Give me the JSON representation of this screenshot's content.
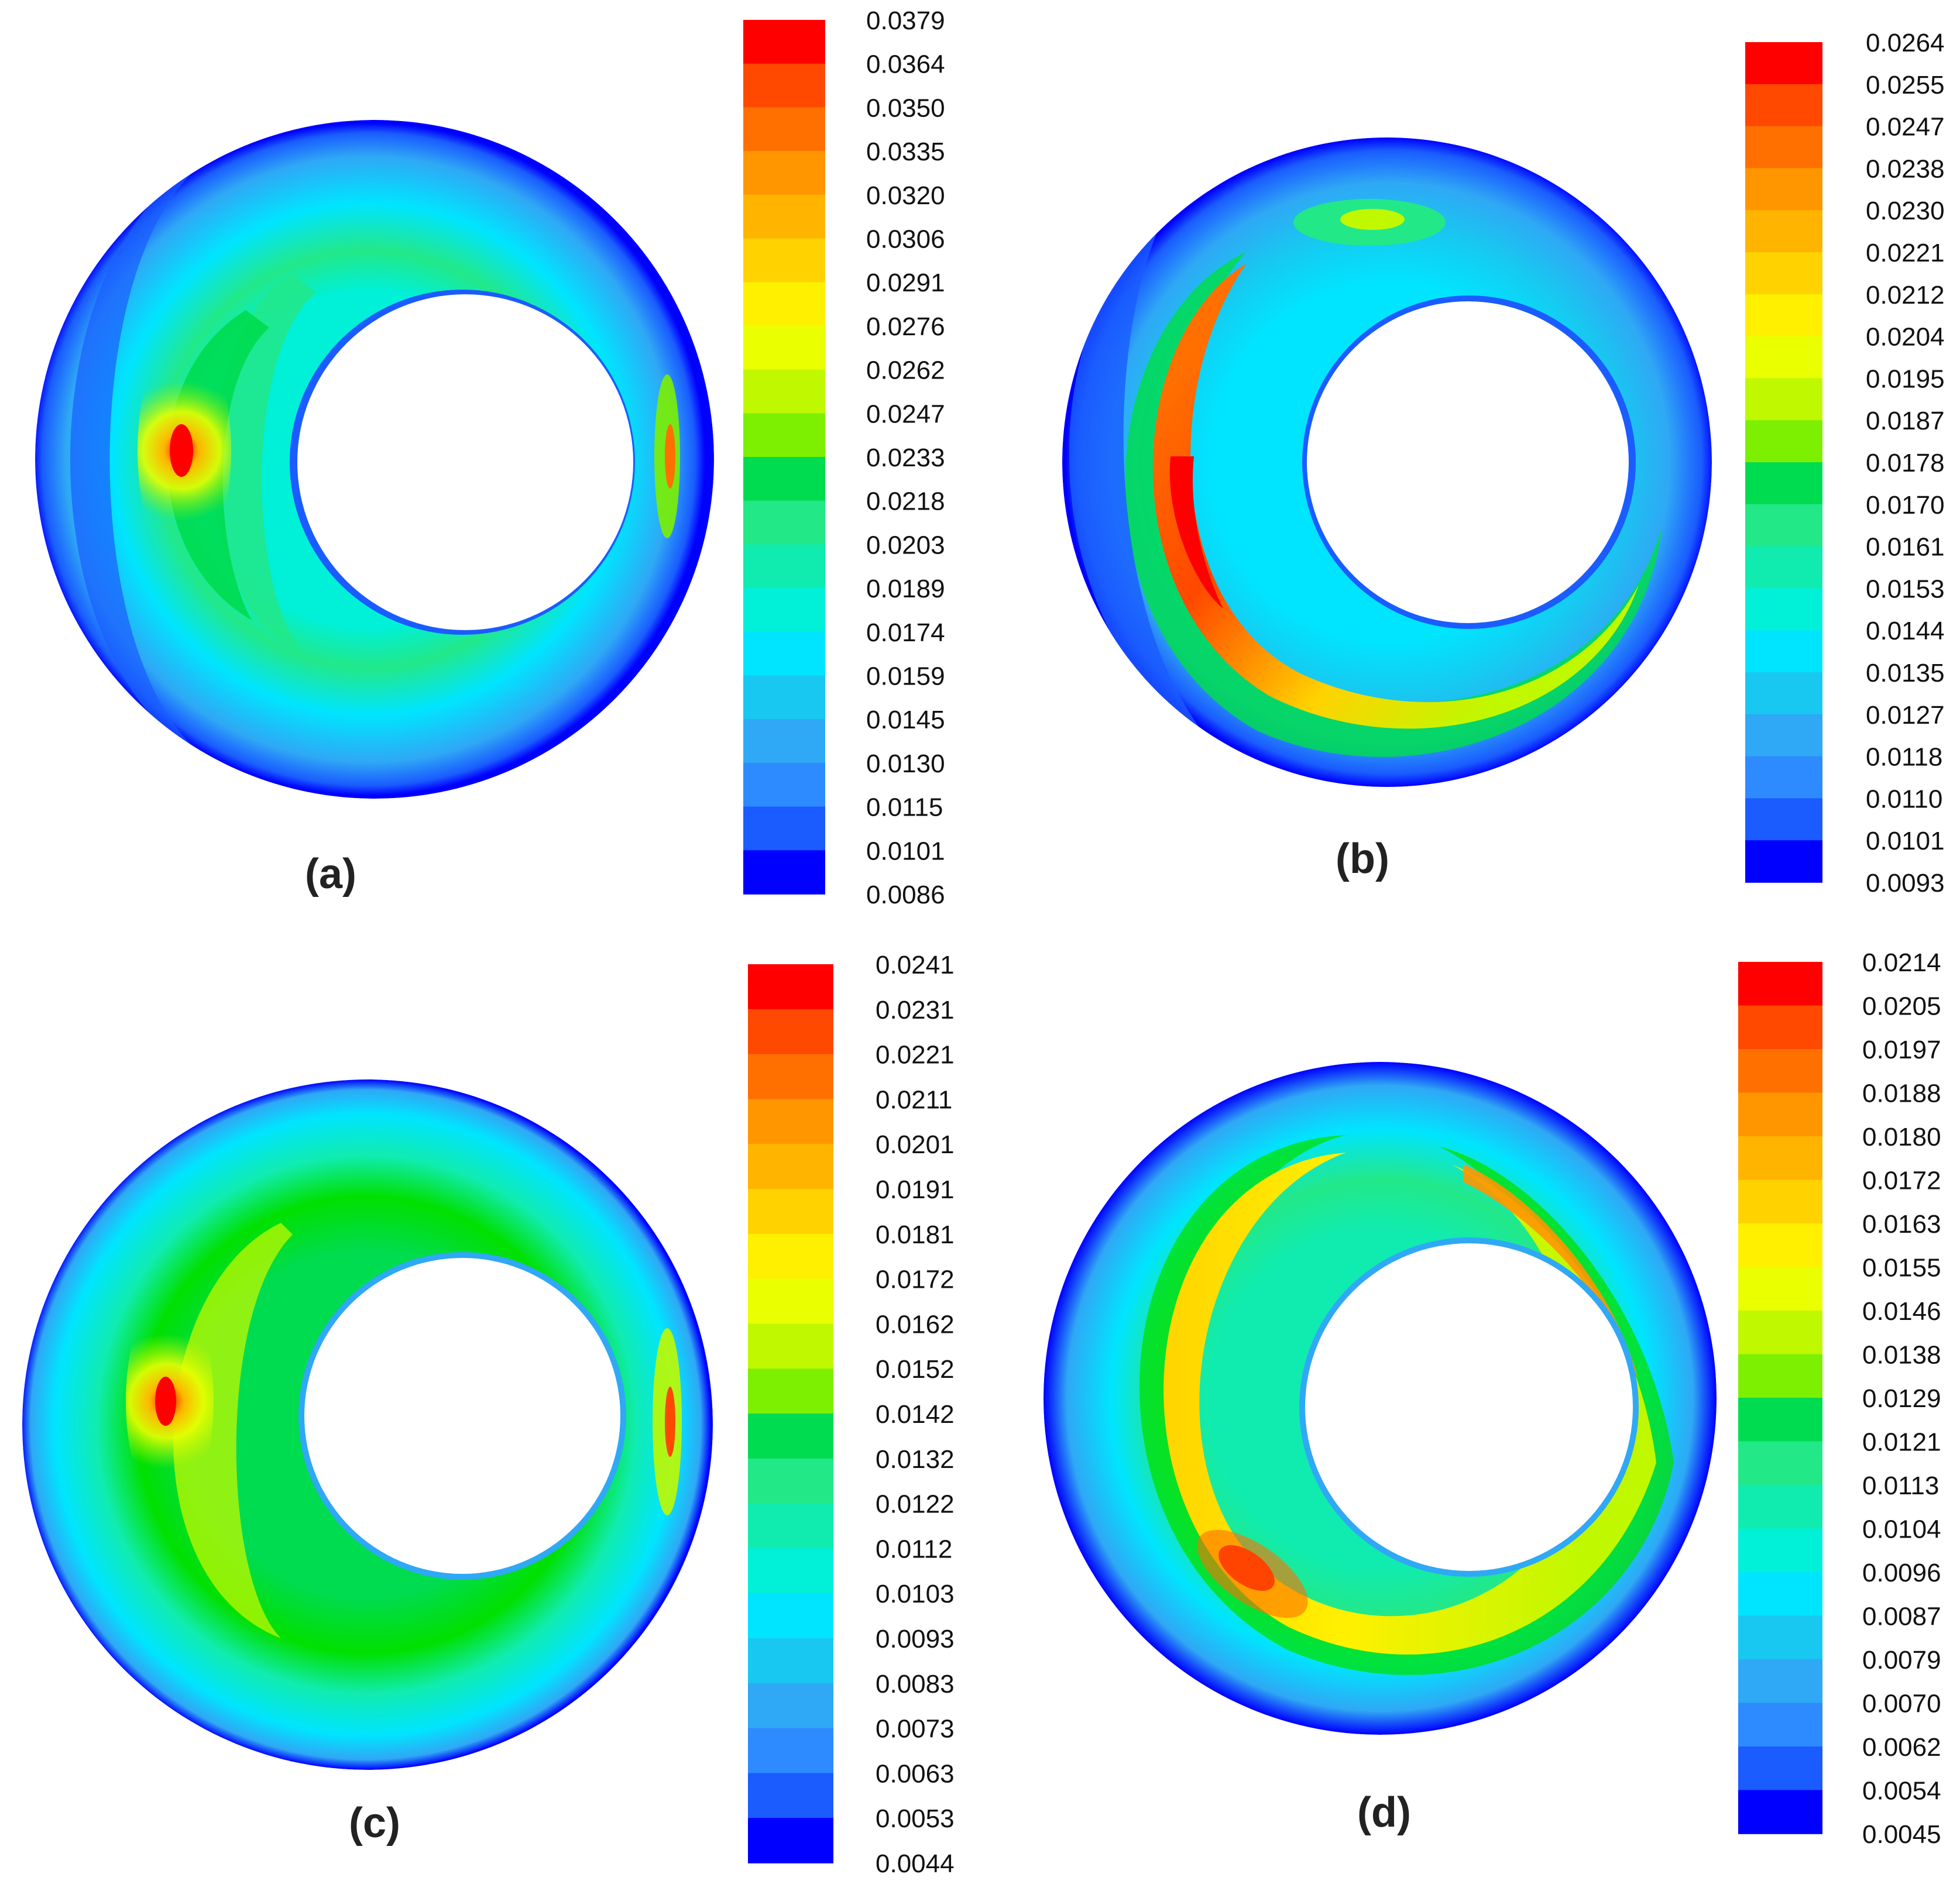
{
  "chart_data": [
    {
      "type": "heatmap",
      "panel_label": "(a)",
      "colorbar_ticks": [
        "0.0379",
        "0.0364",
        "0.0350",
        "0.0335",
        "0.0320",
        "0.0306",
        "0.0291",
        "0.0276",
        "0.0262",
        "0.0247",
        "0.0233",
        "0.0218",
        "0.0203",
        "0.0189",
        "0.0174",
        "0.0159",
        "0.0145",
        "0.0130",
        "0.0115",
        "0.0101",
        "0.0086"
      ],
      "range": [
        0.0086,
        0.0379
      ]
    },
    {
      "type": "heatmap",
      "panel_label": "(b)",
      "colorbar_ticks": [
        "0.0264",
        "0.0255",
        "0.0247",
        "0.0238",
        "0.0230",
        "0.0221",
        "0.0212",
        "0.0204",
        "0.0195",
        "0.0187",
        "0.0178",
        "0.0170",
        "0.0161",
        "0.0153",
        "0.0144",
        "0.0135",
        "0.0127",
        "0.0118",
        "0.0110",
        "0.0101",
        "0.0093"
      ],
      "range": [
        0.0093,
        0.0264
      ]
    },
    {
      "type": "heatmap",
      "panel_label": "(c)",
      "colorbar_ticks": [
        "0.0241",
        "0.0231",
        "0.0221",
        "0.0211",
        "0.0201",
        "0.0191",
        "0.0181",
        "0.0172",
        "0.0162",
        "0.0152",
        "0.0142",
        "0.0132",
        "0.0122",
        "0.0112",
        "0.0103",
        "0.0093",
        "0.0083",
        "0.0073",
        "0.0063",
        "0.0053",
        "0.0044"
      ],
      "range": [
        0.0044,
        0.0241
      ]
    },
    {
      "type": "heatmap",
      "panel_label": "(d)",
      "colorbar_ticks": [
        "0.0214",
        "0.0205",
        "0.0197",
        "0.0188",
        "0.0180",
        "0.0172",
        "0.0163",
        "0.0155",
        "0.0146",
        "0.0138",
        "0.0129",
        "0.0121",
        "0.0113",
        "0.0104",
        "0.0096",
        "0.0087",
        "0.0079",
        "0.0070",
        "0.0062",
        "0.0054",
        "0.0045"
      ],
      "range": [
        0.0045,
        0.0214
      ]
    }
  ],
  "colormap": [
    "#0000ff",
    "#1a5cff",
    "#2e8bff",
    "#2fa8f5",
    "#18c8f0",
    "#00e5ff",
    "#00f0d8",
    "#10ecb0",
    "#22e888",
    "#00dc50",
    "#00e000",
    "#7cf000",
    "#c0f800",
    "#eaff00",
    "#fff000",
    "#ffd200",
    "#ffb400",
    "#ff9600",
    "#ff7000",
    "#ff4800",
    "#ff0000"
  ]
}
